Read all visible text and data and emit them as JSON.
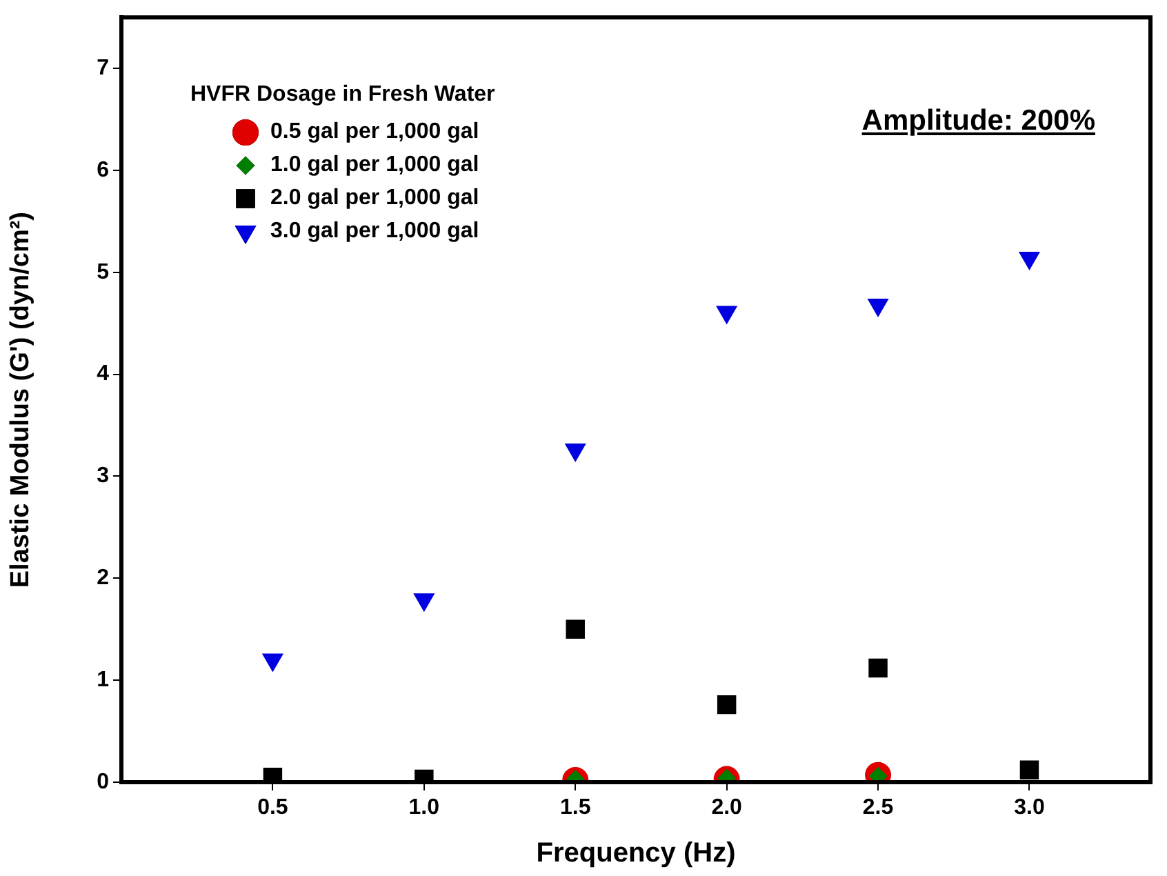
{
  "chart_data": {
    "type": "scatter",
    "xlabel": "Frequency (Hz)",
    "ylabel": "Elastic Modulus (G') (dyn/cm²)",
    "legend_title": "HVFR Dosage in Fresh Water",
    "legend": "top left",
    "grid": false,
    "annotations": [
      "Amplitude: 200%"
    ],
    "x": [
      0.5,
      1.0,
      1.5,
      2.0,
      2.5,
      3.0
    ],
    "xlim": [
      0,
      3.4
    ],
    "xticks": [
      {
        "value": 0.5,
        "label": "0.5"
      },
      {
        "value": 1,
        "label": "1.0"
      },
      {
        "value": 1.5,
        "label": "1.5"
      },
      {
        "value": 2,
        "label": "2.0"
      },
      {
        "value": 2.5,
        "label": "2.5"
      },
      {
        "value": 3,
        "label": "3.0"
      }
    ],
    "ylim": [
      0,
      7.5
    ],
    "yticks": [
      0,
      1,
      2,
      3,
      4,
      5,
      6,
      7
    ],
    "series": [
      {
        "name": "0.5 gal per 1,000 gal",
        "color": "#e00000",
        "marker": "circle",
        "values": [
          null,
          null,
          0.02,
          0.03,
          0.07,
          null
        ]
      },
      {
        "name": "1.0 gal per 1,000 gal",
        "color": "#007f00",
        "marker": "diamond",
        "values": [
          null,
          null,
          0.03,
          0.04,
          0.06,
          null
        ]
      },
      {
        "name": "2.0 gal per 1,000 gal",
        "color": "#000000",
        "marker": "square",
        "values": [
          0.05,
          0.03,
          1.5,
          0.76,
          1.12,
          0.12
        ]
      },
      {
        "name": "3.0 gal per 1,000 gal",
        "color": "#0000e0",
        "marker": "triangle",
        "values": [
          1.2,
          1.79,
          3.26,
          4.61,
          4.68,
          5.14
        ]
      }
    ]
  }
}
